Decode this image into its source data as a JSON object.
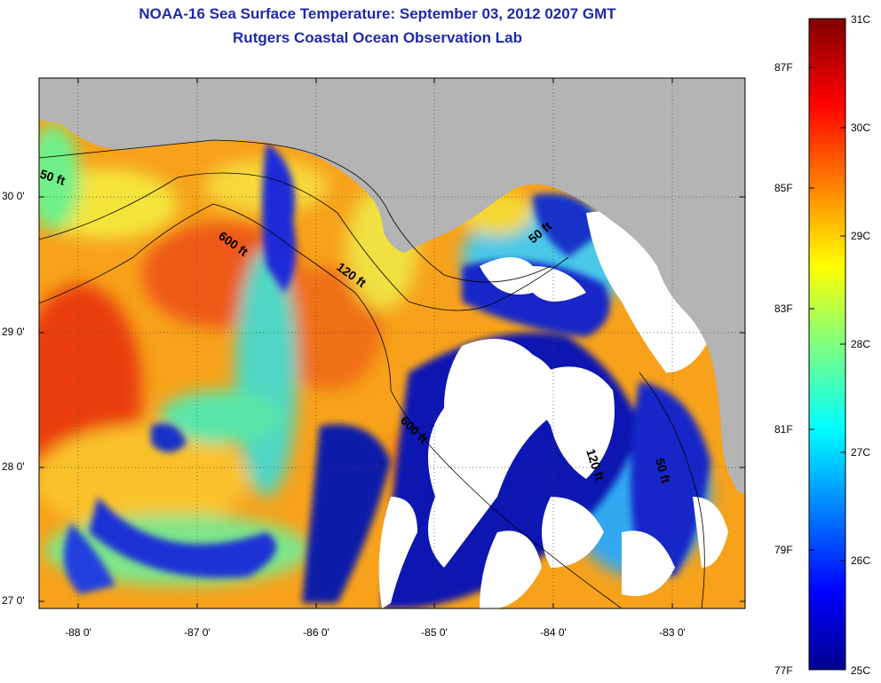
{
  "title": {
    "line1": "NOAA-16 Sea Surface Temperature:  September 03, 2012 0207 GMT",
    "line2": "Rutgers Coastal Ocean Observation Lab"
  },
  "axes": {
    "y_ticks": [
      {
        "label": "30 0'",
        "lat": 30.0
      },
      {
        "label": "29 0'",
        "lat": 29.0
      },
      {
        "label": "28 0'",
        "lat": 28.0
      },
      {
        "label": "27 0'",
        "lat": 27.0
      }
    ],
    "x_ticks": [
      {
        "label": "-88 0'",
        "lon": -88.0
      },
      {
        "label": "-87 0'",
        "lon": -87.0
      },
      {
        "label": "-86 0'",
        "lon": -86.0
      },
      {
        "label": "-85 0'",
        "lon": -85.0
      },
      {
        "label": "-84 0'",
        "lon": -84.0
      },
      {
        "label": "-83 0'",
        "lon": -83.0
      }
    ],
    "lon_range": [
      -88.33,
      -82.42
    ],
    "lat_range": [
      26.95,
      30.88
    ]
  },
  "colorbar": {
    "min_c": 25,
    "max_c": 31,
    "celsius_labels": [
      "31C",
      "30C",
      "29C",
      "28C",
      "27C",
      "26C",
      "25C"
    ],
    "fahrenheit_labels": [
      {
        "label": "87F",
        "temp_c": 30.556
      },
      {
        "label": "85F",
        "temp_c": 29.444
      },
      {
        "label": "83F",
        "temp_c": 28.333
      },
      {
        "label": "81F",
        "temp_c": 27.222
      },
      {
        "label": "79F",
        "temp_c": 26.111
      },
      {
        "label": "77F",
        "temp_c": 25.0
      }
    ]
  },
  "contours": [
    {
      "label": "50 ft"
    },
    {
      "label": "600 ft"
    },
    {
      "label": "120 ft"
    },
    {
      "label": "50 ft"
    },
    {
      "label": "600 ft"
    },
    {
      "label": "120 ft"
    },
    {
      "label": "50 ft"
    }
  ],
  "colors": {
    "land": "#b4b4b4",
    "cloud": "#ffffff",
    "title": "#1f2aa8"
  }
}
